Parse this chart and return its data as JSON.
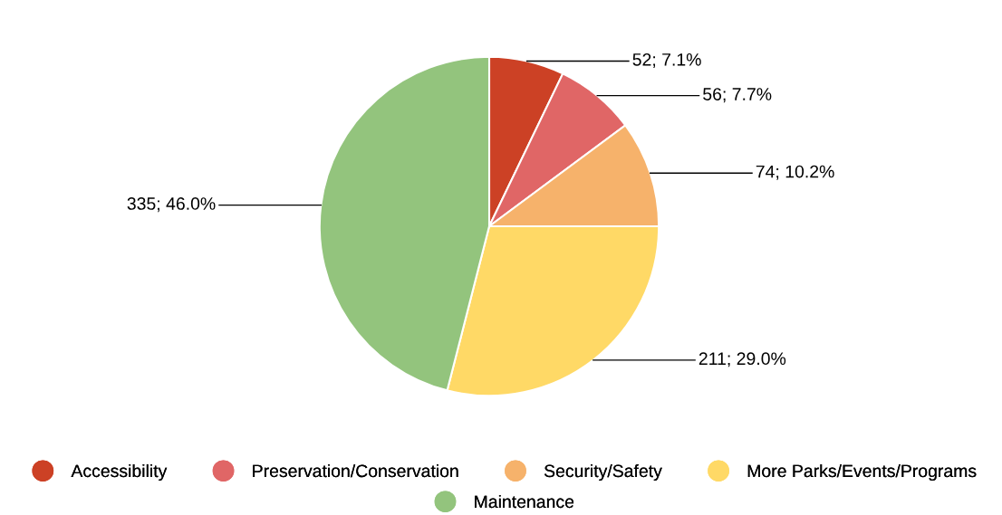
{
  "chart_data": {
    "type": "pie",
    "categories": [
      "Accessibility",
      "Preservation/Conservation",
      "Security/Safety",
      "More Parks/Events/Programs",
      "Maintenance"
    ],
    "values": [
      52,
      56,
      74,
      211,
      335
    ],
    "colors": [
      "#cc4125",
      "#e06666",
      "#f6b26b",
      "#ffd966",
      "#93c47d"
    ],
    "value_labels": [
      "52; 7.1%",
      "56; 7.7%",
      "74; 10.2%",
      "211; 29.0%",
      "335; 46.0%"
    ],
    "legend": "bottom"
  }
}
